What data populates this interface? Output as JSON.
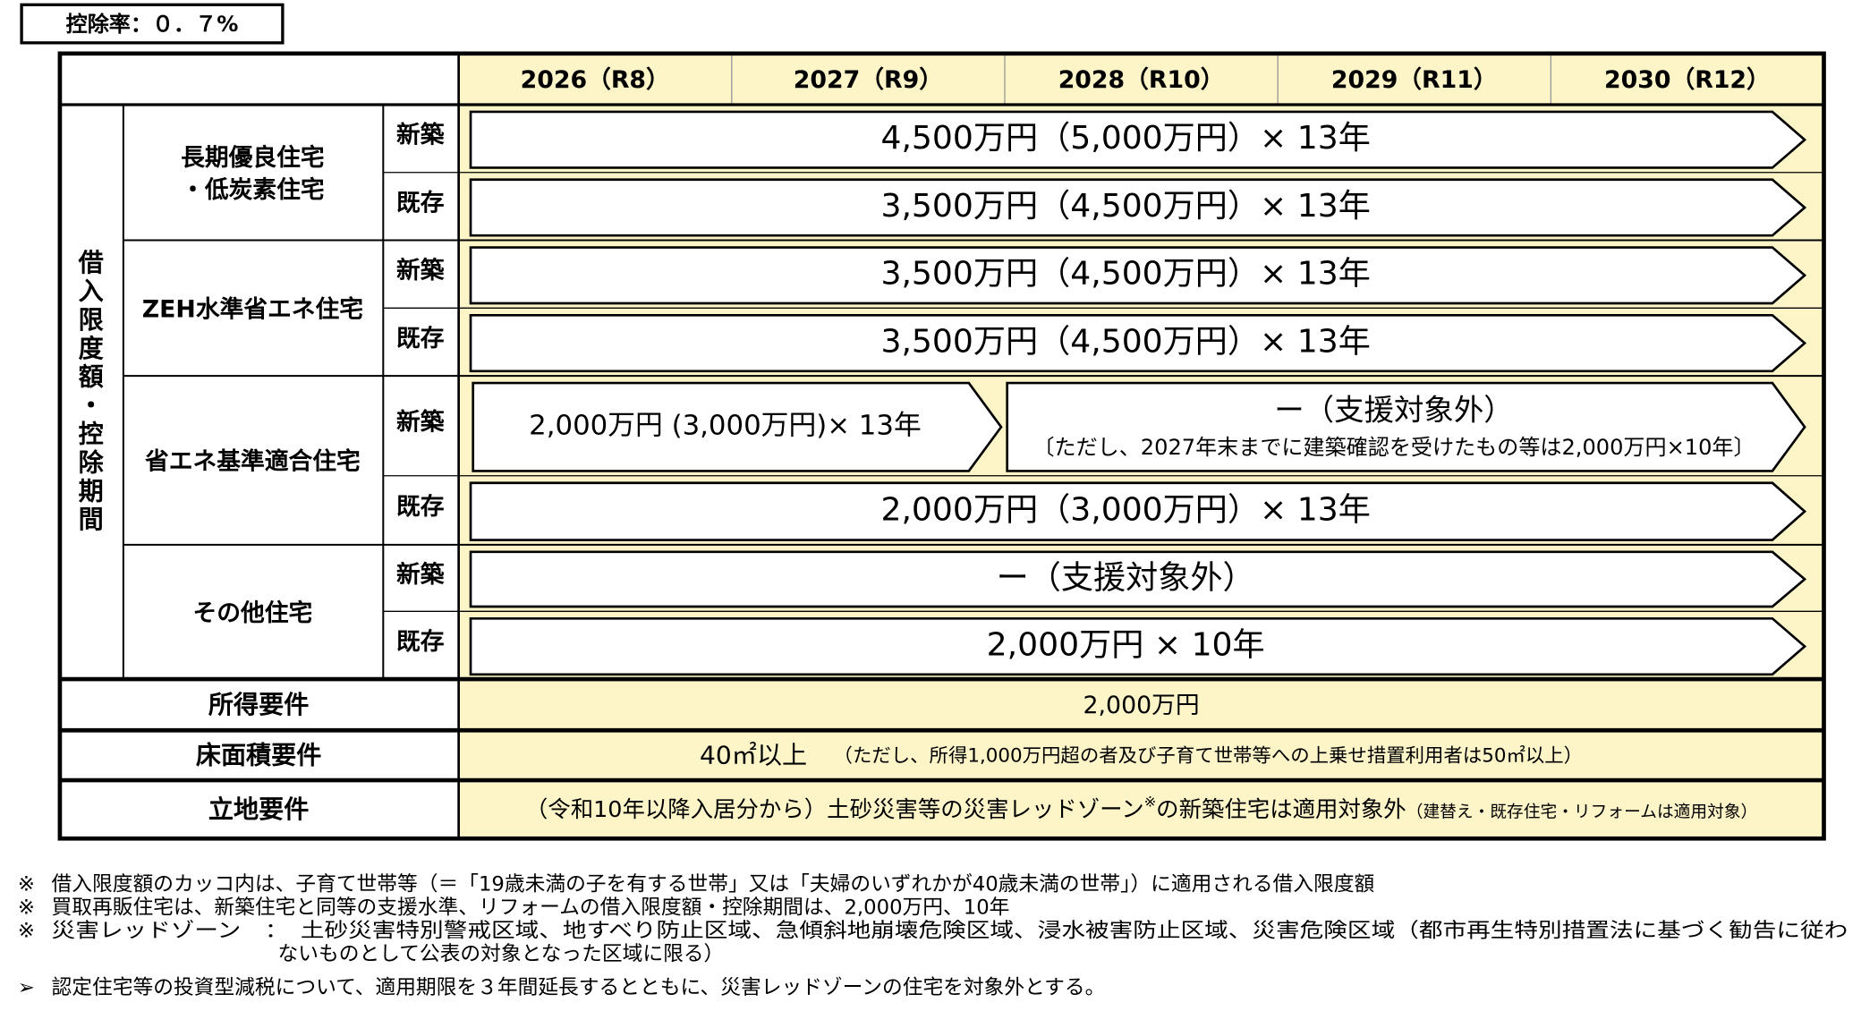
{
  "badge": "控除率：０．７%",
  "table": {
    "years": [
      "2026（R8）",
      "2027（R9）",
      "2028（R10）",
      "2029（R11）",
      "2030（R12）"
    ],
    "side_label": "借入限度額・控除期間",
    "groups": [
      {
        "name": [
          "長期優良住宅",
          "・低炭素住宅"
        ],
        "rows": [
          {
            "kind": "新築",
            "arrows": [
              {
                "lines": [
                  "4,500万円（5,000万円）× 13年"
                ]
              }
            ]
          },
          {
            "kind": "既存",
            "arrows": [
              {
                "lines": [
                  "3,500万円（4,500万円）× 13年"
                ]
              }
            ]
          }
        ]
      },
      {
        "name": [
          "ZEH水準省エネ住宅"
        ],
        "rows": [
          {
            "kind": "新築",
            "arrows": [
              {
                "lines": [
                  "3,500万円（4,500万円）× 13年"
                ]
              }
            ]
          },
          {
            "kind": "既存",
            "arrows": [
              {
                "lines": [
                  "3,500万円（4,500万円）× 13年"
                ]
              }
            ]
          }
        ]
      },
      {
        "name": [
          "省エネ基準適合住宅"
        ],
        "rows": [
          {
            "kind": "新築",
            "arrows": [
              {
                "lines": [
                  "2,000万円 (3,000万円)× 13年"
                ]
              },
              {
                "lines": [
                  "ー（支援対象外）",
                  "〔ただし、2027年末までに建築確認を受けたもの等は2,000万円×10年〕"
                ]
              }
            ]
          },
          {
            "kind": "既存",
            "arrows": [
              {
                "lines": [
                  "2,000万円（3,000万円）× 13年"
                ]
              }
            ]
          }
        ]
      },
      {
        "name": [
          "その他住宅"
        ],
        "rows": [
          {
            "kind": "新築",
            "arrows": [
              {
                "lines": [
                  "ー（支援対象外）"
                ]
              }
            ]
          },
          {
            "kind": "既存",
            "arrows": [
              {
                "lines": [
                  "2,000万円 × 10年"
                ]
              }
            ]
          }
        ]
      }
    ],
    "requirements": [
      {
        "label": "所得要件",
        "parts": [
          "2,000万円"
        ]
      },
      {
        "label": "床面積要件",
        "parts": [
          "40㎡以上",
          "（ただし、所得1,000万円超の者及び子育て世帯等への上乗せ措置利用者は50㎡以上）"
        ]
      },
      {
        "label": "立地要件",
        "parts": [
          "（令和10年以降入居分から）土砂災害等の災害レッドゾーン",
          "※",
          "の新築住宅は適用対象外",
          "（建替え・既存住宅・リフォームは適用対象）"
        ]
      }
    ]
  },
  "notes": [
    {
      "mark": "※",
      "lines": [
        "借入限度額のカッコ内は、子育て世帯等（＝「19歳未満の子を有する世帯」又は「夫婦のいずれかが40歳未満の世帯」）に適用される借入限度額"
      ]
    },
    {
      "mark": "※",
      "lines": [
        "買取再販住宅は、新築住宅と同等の支援水準、リフォームの借入限度額・控除期間は、2,000万円、10年"
      ]
    },
    {
      "mark": "※",
      "lines": [
        "災害レッドゾーン　：　土砂災害特別警戒区域、地すべり防止区域、急傾斜地崩壊危険区域、浸水被害防止区域、災害危険区域（都市再生特別措置法に基づく勧告に従わ",
        "ないものとして公表の対象となった区域に限る）"
      ]
    },
    {
      "mark": "➢",
      "lines": [
        "認定住宅等の投資型減税について、適用期限を３年間延長するとともに、災害レッドゾーンの住宅を対象外とする。"
      ]
    }
  ]
}
